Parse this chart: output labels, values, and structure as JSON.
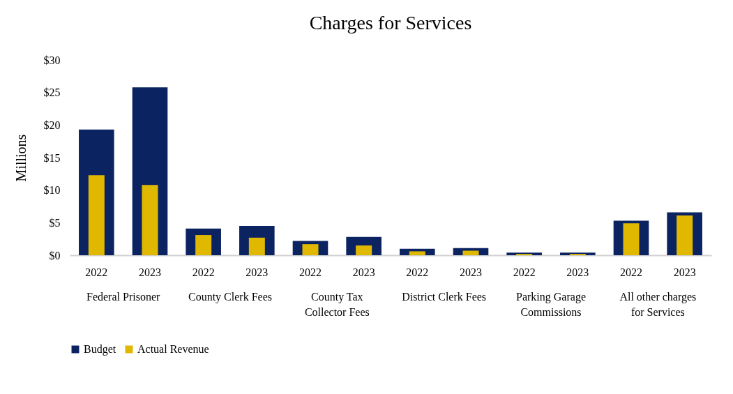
{
  "chart_data": {
    "type": "bar",
    "title": "Charges for Services",
    "ylabel": "Millions",
    "categories": [
      "2022",
      "2023",
      "2022",
      "2023",
      "2022",
      "2023",
      "2022",
      "2023",
      "2022",
      "2023",
      "2022",
      "2023"
    ],
    "series": [
      {
        "name": "Budget",
        "color": "#0b2461",
        "values": [
          19.3,
          25.8,
          4.1,
          4.5,
          2.2,
          2.8,
          1.0,
          1.1,
          0.4,
          0.4,
          5.3,
          6.6
        ]
      },
      {
        "name": "Actual Revenue",
        "color": "#e0b800",
        "values": [
          12.3,
          10.8,
          3.1,
          2.7,
          1.7,
          1.5,
          0.6,
          0.7,
          0.2,
          0.2,
          4.9,
          6.1
        ]
      }
    ],
    "annotations": [
      "Federal Prisoner",
      "County Clerk Fees",
      "County Tax Collector Fees",
      "District Clerk Fees",
      "Parking Garage Commissions",
      "All other charges for Services"
    ],
    "ylim": [
      0,
      30
    ],
    "yticks": [
      {
        "value": 0,
        "label": "$0"
      },
      {
        "value": 5,
        "label": "$5"
      },
      {
        "value": 10,
        "label": "$10"
      },
      {
        "value": 15,
        "label": "$15"
      },
      {
        "value": 20,
        "label": "$20"
      },
      {
        "value": 25,
        "label": "$25"
      },
      {
        "value": 30,
        "label": "$30"
      }
    ],
    "grid": false,
    "legend": "bottom"
  }
}
